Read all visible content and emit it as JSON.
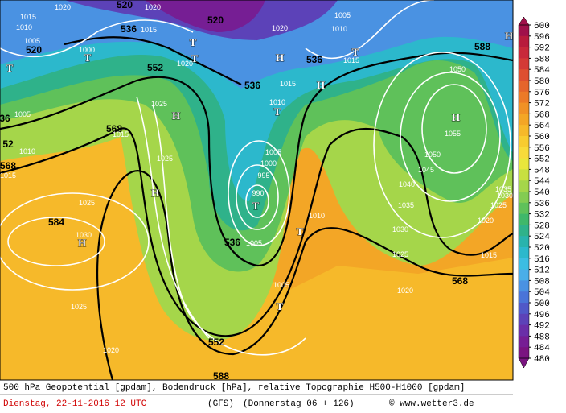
{
  "map": {
    "geopotential_labels": [
      520,
      520,
      536,
      520,
      552,
      536,
      588,
      536,
      568,
      52,
      568,
      584,
      536,
      552,
      568,
      588,
      36
    ],
    "pressure_labels": [
      1015,
      1020,
      1020,
      1010,
      1005,
      1000,
      1015,
      1020,
      1005,
      1010,
      1015,
      1020,
      1025,
      1015,
      1010,
      1025,
      1015,
      1005,
      1010,
      1015,
      1025,
      1030,
      1025,
      1020,
      1005,
      1000,
      995,
      990,
      1005,
      1010,
      1005,
      1050,
      1055,
      1050,
      1045,
      1040,
      1035,
      1030,
      1025,
      1020,
      1020,
      1025,
      1035,
      1015,
      1030
    ],
    "pressure_centers": [
      "T",
      "T",
      "T",
      "H",
      "T",
      "H",
      "T",
      "H",
      "H",
      "T",
      "H",
      "T",
      "T",
      "H",
      "H",
      "T"
    ]
  },
  "colorbar": {
    "labels": [
      600,
      596,
      592,
      588,
      584,
      580,
      576,
      572,
      568,
      564,
      560,
      556,
      552,
      548,
      544,
      540,
      536,
      532,
      528,
      524,
      520,
      516,
      512,
      508,
      504,
      500,
      496,
      492,
      488,
      484,
      480
    ],
    "colors": [
      "#a0104a",
      "#b81b3c",
      "#c8283a",
      "#d43a36",
      "#de4f30",
      "#e5652c",
      "#ec7a28",
      "#f09126",
      "#f3a626",
      "#f6b92a",
      "#f8cc30",
      "#f8db3a",
      "#e9e63c",
      "#c8e040",
      "#a5d64a",
      "#83cc52",
      "#5fc15a",
      "#3fb86a",
      "#2fb28a",
      "#29b3ad",
      "#2cb8cc",
      "#3cbde2",
      "#4aaee8",
      "#4a92e2",
      "#4a74d8",
      "#5058c8",
      "#5c42b8",
      "#6a2ea8",
      "#761e94",
      "#7a1480"
    ]
  },
  "footer": {
    "line1": "500 hPa Geopotential [gpdam], Bodendruck [hPa], relative Topographie H500-H1000 [gpdam]",
    "date": "Dienstag, 22-11-2016  12 UTC",
    "model": "(GFS)",
    "forecast": "(Donnerstag 06 + 126)",
    "credit": "© www.wetter3.de"
  }
}
